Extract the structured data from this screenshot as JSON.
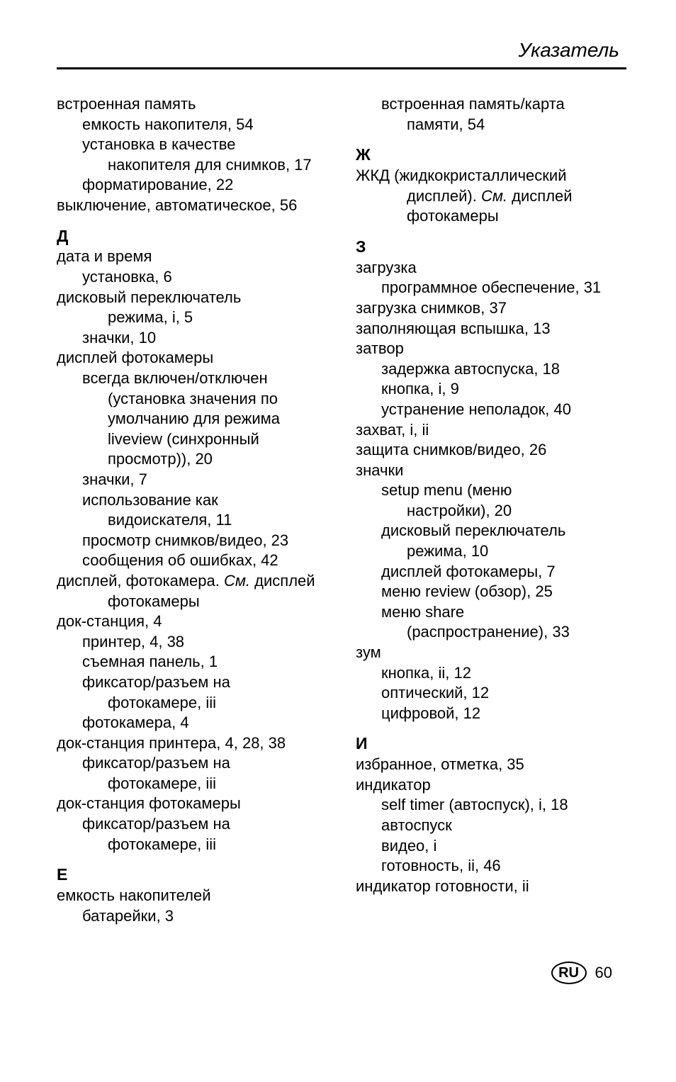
{
  "header": {
    "title": "Указатель"
  },
  "footer": {
    "lang": "RU",
    "page": "60"
  },
  "left": [
    {
      "lvl": 0,
      "text": "встроенная память"
    },
    {
      "lvl": 1,
      "text": "емкость накопителя, 54"
    },
    {
      "lvl": 1,
      "text": "установка в качестве"
    },
    {
      "lvl": 2,
      "text": "накопителя для снимков, 17"
    },
    {
      "lvl": 1,
      "text": "форматирование, 22"
    },
    {
      "lvl": 0,
      "text": "выключение, автоматическое, 56"
    },
    {
      "head": "Д"
    },
    {
      "lvl": 0,
      "text": "дата и время"
    },
    {
      "lvl": 1,
      "text": "установка, 6"
    },
    {
      "lvl": 0,
      "text": "дисковый переключатель"
    },
    {
      "lvl": 2,
      "text": "режима, i, 5"
    },
    {
      "lvl": 1,
      "text": "значки, 10"
    },
    {
      "lvl": 0,
      "text": "дисплей фотокамеры"
    },
    {
      "lvl": 1,
      "text": "всегда включен/отключен"
    },
    {
      "lvl": 2,
      "text": "(установка значения по"
    },
    {
      "lvl": 2,
      "text": "умолчанию для режима"
    },
    {
      "lvl": 2,
      "text": "liveview (синхронный"
    },
    {
      "lvl": 2,
      "text": "просмотр)), 20"
    },
    {
      "lvl": 1,
      "text": "значки, 7"
    },
    {
      "lvl": 1,
      "text": "использование как"
    },
    {
      "lvl": 2,
      "text": "видоискателя, 11"
    },
    {
      "lvl": 1,
      "text": "просмотр снимков/видео, 23"
    },
    {
      "lvl": 1,
      "text": "сообщения об ошибках, 42"
    },
    {
      "lvl": 0,
      "parts": [
        {
          "t": "дисплей, фотокамера. "
        },
        {
          "t": "См.",
          "i": true
        },
        {
          "t": " дисплей"
        }
      ]
    },
    {
      "lvl": 2,
      "text": "фотокамеры"
    },
    {
      "lvl": 0,
      "text": "док-станция, 4"
    },
    {
      "lvl": 1,
      "text": "принтер, 4, 38"
    },
    {
      "lvl": 1,
      "text": "съемная панель, 1"
    },
    {
      "lvl": 1,
      "text": "фиксатор/разъем на"
    },
    {
      "lvl": 2,
      "text": "фотокамере, iii"
    },
    {
      "lvl": 1,
      "text": "фотокамера, 4"
    },
    {
      "lvl": 0,
      "text": "док-станция принтера, 4, 28, 38"
    },
    {
      "lvl": 1,
      "text": "фиксатор/разъем на"
    },
    {
      "lvl": 2,
      "text": "фотокамере, iii"
    },
    {
      "lvl": 0,
      "text": "док-станция фотокамеры"
    },
    {
      "lvl": 1,
      "text": "фиксатор/разъем на"
    },
    {
      "lvl": 2,
      "text": "фотокамере, iii"
    },
    {
      "head": "Е"
    },
    {
      "lvl": 0,
      "text": "емкость накопителей"
    },
    {
      "lvl": 1,
      "text": "батарейки, 3"
    }
  ],
  "right": [
    {
      "lvl": 1,
      "text": "встроенная память/карта"
    },
    {
      "lvl": 2,
      "text": "памяти, 54"
    },
    {
      "head": "Ж"
    },
    {
      "lvl": 0,
      "text": "ЖКД (жидкокристаллический"
    },
    {
      "lvl": 2,
      "parts": [
        {
          "t": "дисплей). "
        },
        {
          "t": "См.",
          "i": true
        },
        {
          "t": " дисплей"
        }
      ]
    },
    {
      "lvl": 2,
      "text": "фотокамеры"
    },
    {
      "head": "З"
    },
    {
      "lvl": 0,
      "text": "загрузка"
    },
    {
      "lvl": 1,
      "text": "программное обеспечение, 31"
    },
    {
      "lvl": 0,
      "text": "загрузка снимков, 37"
    },
    {
      "lvl": 0,
      "text": "заполняющая вспышка, 13"
    },
    {
      "lvl": 0,
      "text": "затвор"
    },
    {
      "lvl": 1,
      "text": "задержка автоспуска, 18"
    },
    {
      "lvl": 1,
      "text": "кнопка, i, 9"
    },
    {
      "lvl": 1,
      "text": "устранение неполадок, 40"
    },
    {
      "lvl": 0,
      "text": "захват, i, ii"
    },
    {
      "lvl": 0,
      "text": "защита снимков/видео, 26"
    },
    {
      "lvl": 0,
      "text": "значки"
    },
    {
      "lvl": 1,
      "text": "setup menu (меню"
    },
    {
      "lvl": 2,
      "text": "настройки), 20"
    },
    {
      "lvl": 1,
      "text": "дисковый переключатель"
    },
    {
      "lvl": 2,
      "text": "режима, 10"
    },
    {
      "lvl": 1,
      "text": "дисплей фотокамеры, 7"
    },
    {
      "lvl": 1,
      "text": "меню review (обзор), 25"
    },
    {
      "lvl": 1,
      "text": "меню share"
    },
    {
      "lvl": 2,
      "text": "(распространение), 33"
    },
    {
      "lvl": 0,
      "text": "зум"
    },
    {
      "lvl": 1,
      "text": "кнопка, ii, 12"
    },
    {
      "lvl": 1,
      "text": "оптический, 12"
    },
    {
      "lvl": 1,
      "text": "цифровой, 12"
    },
    {
      "head": "И"
    },
    {
      "lvl": 0,
      "text": "избранное, отметка, 35"
    },
    {
      "lvl": 0,
      "text": "индикатор"
    },
    {
      "lvl": 1,
      "text": "self timer (автоспуск), i, 18"
    },
    {
      "lvl": 1,
      "text": "автоспуск"
    },
    {
      "lvl": 1,
      "text": "видео, i"
    },
    {
      "lvl": 1,
      "text": "готовность, ii, 46"
    },
    {
      "lvl": 0,
      "text": "индикатор готовности, ii"
    }
  ]
}
